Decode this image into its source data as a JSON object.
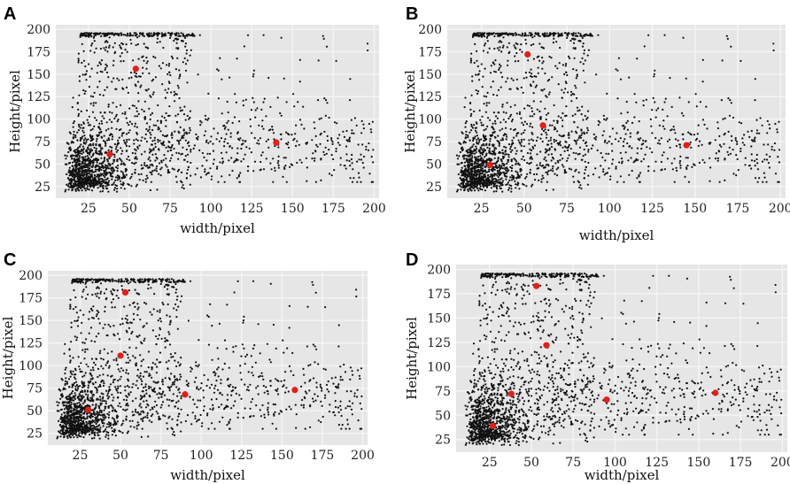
{
  "figure": {
    "description_panels": [
      "A",
      "B",
      "C",
      "D"
    ]
  },
  "colors": {
    "plot_background": "#e6e6e6",
    "grid": "#f4f4f4",
    "point": "#111111",
    "centroid": "#e0201b"
  },
  "chart_data": [
    {
      "type": "scatter",
      "panel": "A",
      "xlabel": "width/pixel",
      "ylabel": "Height/pixel",
      "xlim": [
        5,
        203
      ],
      "ylim": [
        12,
        205
      ],
      "xticks": [
        25,
        50,
        75,
        100,
        125,
        150,
        175,
        200
      ],
      "yticks": [
        25,
        50,
        75,
        100,
        125,
        150,
        175,
        200
      ],
      "grid": true,
      "centroids": [
        [
          38,
          61
        ],
        [
          54,
          156
        ],
        [
          140,
          74
        ]
      ]
    },
    {
      "type": "scatter",
      "panel": "B",
      "xlabel": "width/pixel",
      "ylabel": "Height/pixel",
      "xlim": [
        5,
        203
      ],
      "ylim": [
        12,
        205
      ],
      "xticks": [
        25,
        50,
        75,
        100,
        125,
        150,
        175,
        200
      ],
      "yticks": [
        25,
        50,
        75,
        100,
        125,
        150,
        175,
        200
      ],
      "grid": true,
      "centroids": [
        [
          30,
          49
        ],
        [
          52,
          172
        ],
        [
          61,
          93
        ],
        [
          145,
          71
        ]
      ]
    },
    {
      "type": "scatter",
      "panel": "C",
      "xlabel": "width/pixel",
      "ylabel": "Height/pixel",
      "xlim": [
        5,
        203
      ],
      "ylim": [
        12,
        205
      ],
      "xticks": [
        25,
        50,
        75,
        100,
        125,
        150,
        175,
        200
      ],
      "yticks": [
        25,
        50,
        75,
        100,
        125,
        150,
        175,
        200
      ],
      "grid": true,
      "centroids": [
        [
          30,
          51
        ],
        [
          50,
          111
        ],
        [
          53,
          181
        ],
        [
          90,
          68
        ],
        [
          158,
          73
        ]
      ]
    },
    {
      "type": "scatter",
      "panel": "D",
      "xlabel": "width/pixel",
      "ylabel": "Height/pixel",
      "xlim": [
        5,
        203
      ],
      "ylim": [
        12,
        205
      ],
      "xticks": [
        25,
        50,
        75,
        100,
        125,
        150,
        175,
        200
      ],
      "yticks": [
        25,
        50,
        75,
        100,
        125,
        150,
        175,
        200
      ],
      "grid": true,
      "centroids": [
        [
          27,
          39
        ],
        [
          38,
          72
        ],
        [
          53,
          183
        ],
        [
          59,
          122
        ],
        [
          95,
          66
        ],
        [
          160,
          73
        ]
      ]
    }
  ]
}
